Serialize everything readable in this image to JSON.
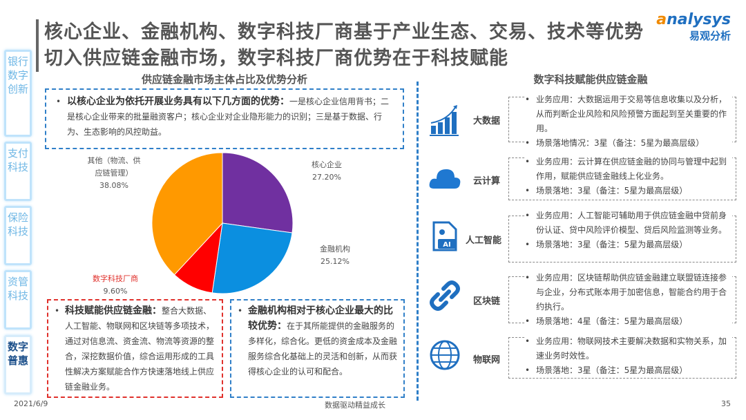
{
  "title": "核心企业、金融机构、数字科技厂商基于产业生态、交易、技术等优势切入供应链金融市场，数字科技厂商优势在于科技赋能",
  "logo": {
    "en_a": "a",
    "en_rest": "nalysys",
    "cn": "易观分析"
  },
  "sidebar": [
    {
      "label": "银行数字创新",
      "active": false
    },
    {
      "label": "支付科技",
      "active": false
    },
    {
      "label": "保险科技",
      "active": false
    },
    {
      "label": "资管科技",
      "active": false
    },
    {
      "label": "数字普惠",
      "active": true
    }
  ],
  "left": {
    "subtitle": "供应链金融市场主体占比及优势分析",
    "box1": {
      "bold": "以核心企业为依托开展业务具有以下几方面的优势：",
      "text": "一是核心企业信用背书；二是核心企业带来的批量融资客户；核心企业对企业隐形能力的识别；三是基于数据、行为、生态影响的风控助益。"
    },
    "box2": {
      "bold": "科技赋能供应链金融：",
      "text": "整合大数据、人工智能、物联网和区块链等多项技术，通过对信息流、资金流、物流等资源的整合，深挖数据价值，综合运用形成的工具性解决方案赋能合作方快速落地线上供应链金融业务。"
    },
    "box3": {
      "bold": "金融机构相对于核心企业最大的比较优势：",
      "text": "在于其所能提供的金融服务的多样化，综合化。更低的资金成本及金融服务综合化基础上的灵活和创新，从而获得核心企业的认可和配合。"
    }
  },
  "chart_data": {
    "type": "pie",
    "categories": [
      "核心企业",
      "金融机构",
      "数字科技厂商",
      "其他（物流、供应链管理）"
    ],
    "values": [
      27.2,
      25.12,
      9.6,
      38.08
    ],
    "value_labels": [
      "27.20%",
      "25.12%",
      "9.60%",
      "38.08%"
    ],
    "colors": [
      "#7030a0",
      "#0b8fe0",
      "#ff0000",
      "#ff9900"
    ],
    "start": "12 o'clock, clockwise"
  },
  "right": {
    "subtitle": "数字科技赋能供应链金融",
    "rows": [
      {
        "label": "大数据",
        "icon": "bar-chart-growth-icon",
        "items": [
          "业务应用：大数据运用于交易等信息收集以及分析，从而判断企业风险和风险预警方面起到至关重要的作用。",
          "场景落地情况：3星（备注：5星为最高层级）"
        ]
      },
      {
        "label": "云计算",
        "icon": "cloud-icon",
        "items": [
          "业务应用：云计算在供应链金融的协同与管理中起到作用，赋能供应链金融线上化业务。",
          "场景落地：3星（备注：5星为最高层级）"
        ]
      },
      {
        "label": "人工智能",
        "icon": "ai-document-icon",
        "items": [
          "业务应用：人工智能可辅助用于供应链金融中贷前身份认证、贷中风险评价模型、贷后风险监测等业务。",
          "场景落地：3星（备注：5星为最高层级）"
        ]
      },
      {
        "label": "区块链",
        "icon": "chain-link-icon",
        "items": [
          "业务应用：区块链帮助供应链金融建立联盟链连接参与企业，分布式账本用于加密信息，智能合约用于合约执行。",
          "场景落地：4星（备注：5星为最高层级）"
        ]
      },
      {
        "label": "物联网",
        "icon": "globe-network-icon",
        "items": [
          "业务应用：物联网技术主要解决数据和实物关系，加速业务时效性。",
          "场景落地：3星（备注：5星为最高层级）"
        ]
      }
    ]
  },
  "footer": {
    "date": "2021/6/9",
    "slogan": "数据驱动精益成长",
    "page": "35"
  },
  "colors": {
    "accent": "#2f7fc8",
    "red": "#e0302b",
    "logo_orange": "#f08a00"
  }
}
